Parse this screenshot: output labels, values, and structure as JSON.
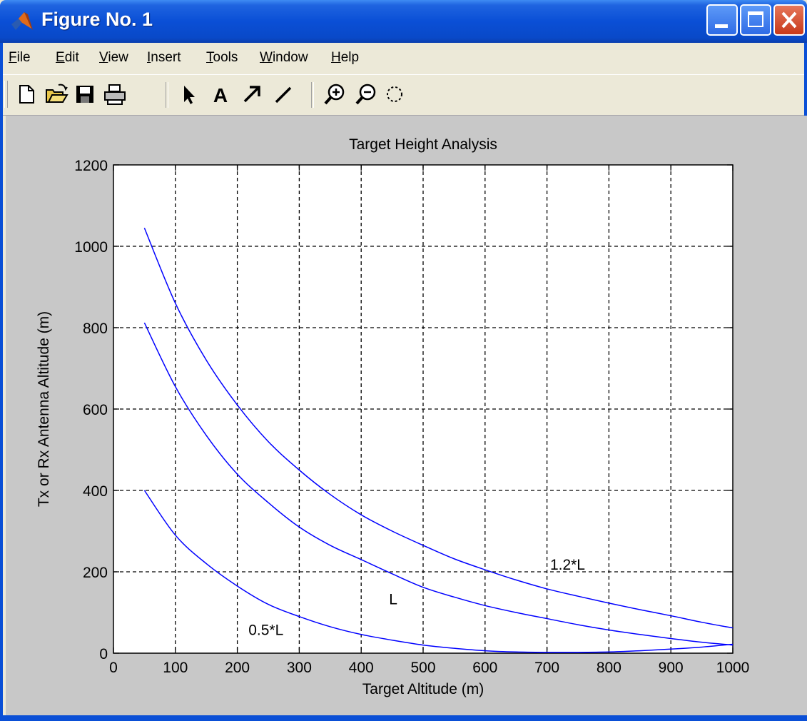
{
  "window": {
    "title": "Figure No. 1"
  },
  "menu": [
    {
      "label": "File",
      "u": "F",
      "rest": "ile"
    },
    {
      "label": "Edit",
      "u": "E",
      "rest": "dit"
    },
    {
      "label": "View",
      "u": "V",
      "rest": "iew"
    },
    {
      "label": "Insert",
      "u": "I",
      "rest": "nsert"
    },
    {
      "label": "Tools",
      "u": "T",
      "rest": "ools"
    },
    {
      "label": "Window",
      "u": "W",
      "rest": "indow"
    },
    {
      "label": "Help",
      "u": "H",
      "rest": "elp"
    }
  ],
  "toolbar": {
    "buttons": [
      "new-icon",
      "open-icon",
      "save-icon",
      "print-icon",
      "select-arrow-icon",
      "text-icon",
      "arrow-icon",
      "line-icon",
      "zoom-in-icon",
      "zoom-out-icon",
      "rotate-icon"
    ]
  },
  "chart_data": {
    "type": "line",
    "title": "Target Height Analysis",
    "xlabel": "Target Altitude (m)",
    "ylabel": "Tx or Rx Antenna Altitude (m)",
    "xlim": [
      0,
      1000
    ],
    "ylim": [
      0,
      1200
    ],
    "xticks": [
      0,
      100,
      200,
      300,
      400,
      500,
      600,
      700,
      800,
      900,
      1000
    ],
    "yticks": [
      0,
      200,
      400,
      600,
      800,
      1000,
      1200
    ],
    "grid": true,
    "line_color": "#0000ff",
    "series": [
      {
        "name": "1.2*L",
        "x": [
          50,
          100,
          150,
          200,
          250,
          300,
          350,
          400,
          450,
          500,
          550,
          600,
          650,
          700,
          750,
          800,
          850,
          900,
          950,
          1000
        ],
        "y": [
          1045,
          860,
          720,
          610,
          520,
          450,
          390,
          340,
          300,
          265,
          232,
          205,
          180,
          158,
          140,
          123,
          107,
          92,
          76,
          62
        ]
      },
      {
        "name": "L",
        "x": [
          50,
          100,
          150,
          200,
          250,
          300,
          350,
          400,
          450,
          500,
          550,
          600,
          650,
          700,
          750,
          800,
          850,
          900,
          950,
          1000
        ],
        "y": [
          812,
          655,
          535,
          440,
          370,
          310,
          265,
          230,
          195,
          162,
          138,
          117,
          100,
          85,
          70,
          57,
          46,
          36,
          27,
          20
        ]
      },
      {
        "name": "0.5*L",
        "x": [
          50,
          100,
          150,
          200,
          250,
          300,
          350,
          400,
          450,
          500,
          550,
          600,
          650,
          700,
          750,
          800,
          850,
          900,
          950,
          1000
        ],
        "y": [
          400,
          290,
          220,
          165,
          120,
          90,
          65,
          46,
          32,
          20,
          12,
          6,
          3,
          2,
          2,
          3,
          6,
          10,
          15,
          22
        ]
      }
    ],
    "annotations": [
      {
        "text": "1.2*L",
        "x": 705,
        "y": 205
      },
      {
        "text": "L",
        "x": 445,
        "y": 120
      },
      {
        "text": "0.5*L",
        "x": 218,
        "y": 45
      }
    ]
  }
}
